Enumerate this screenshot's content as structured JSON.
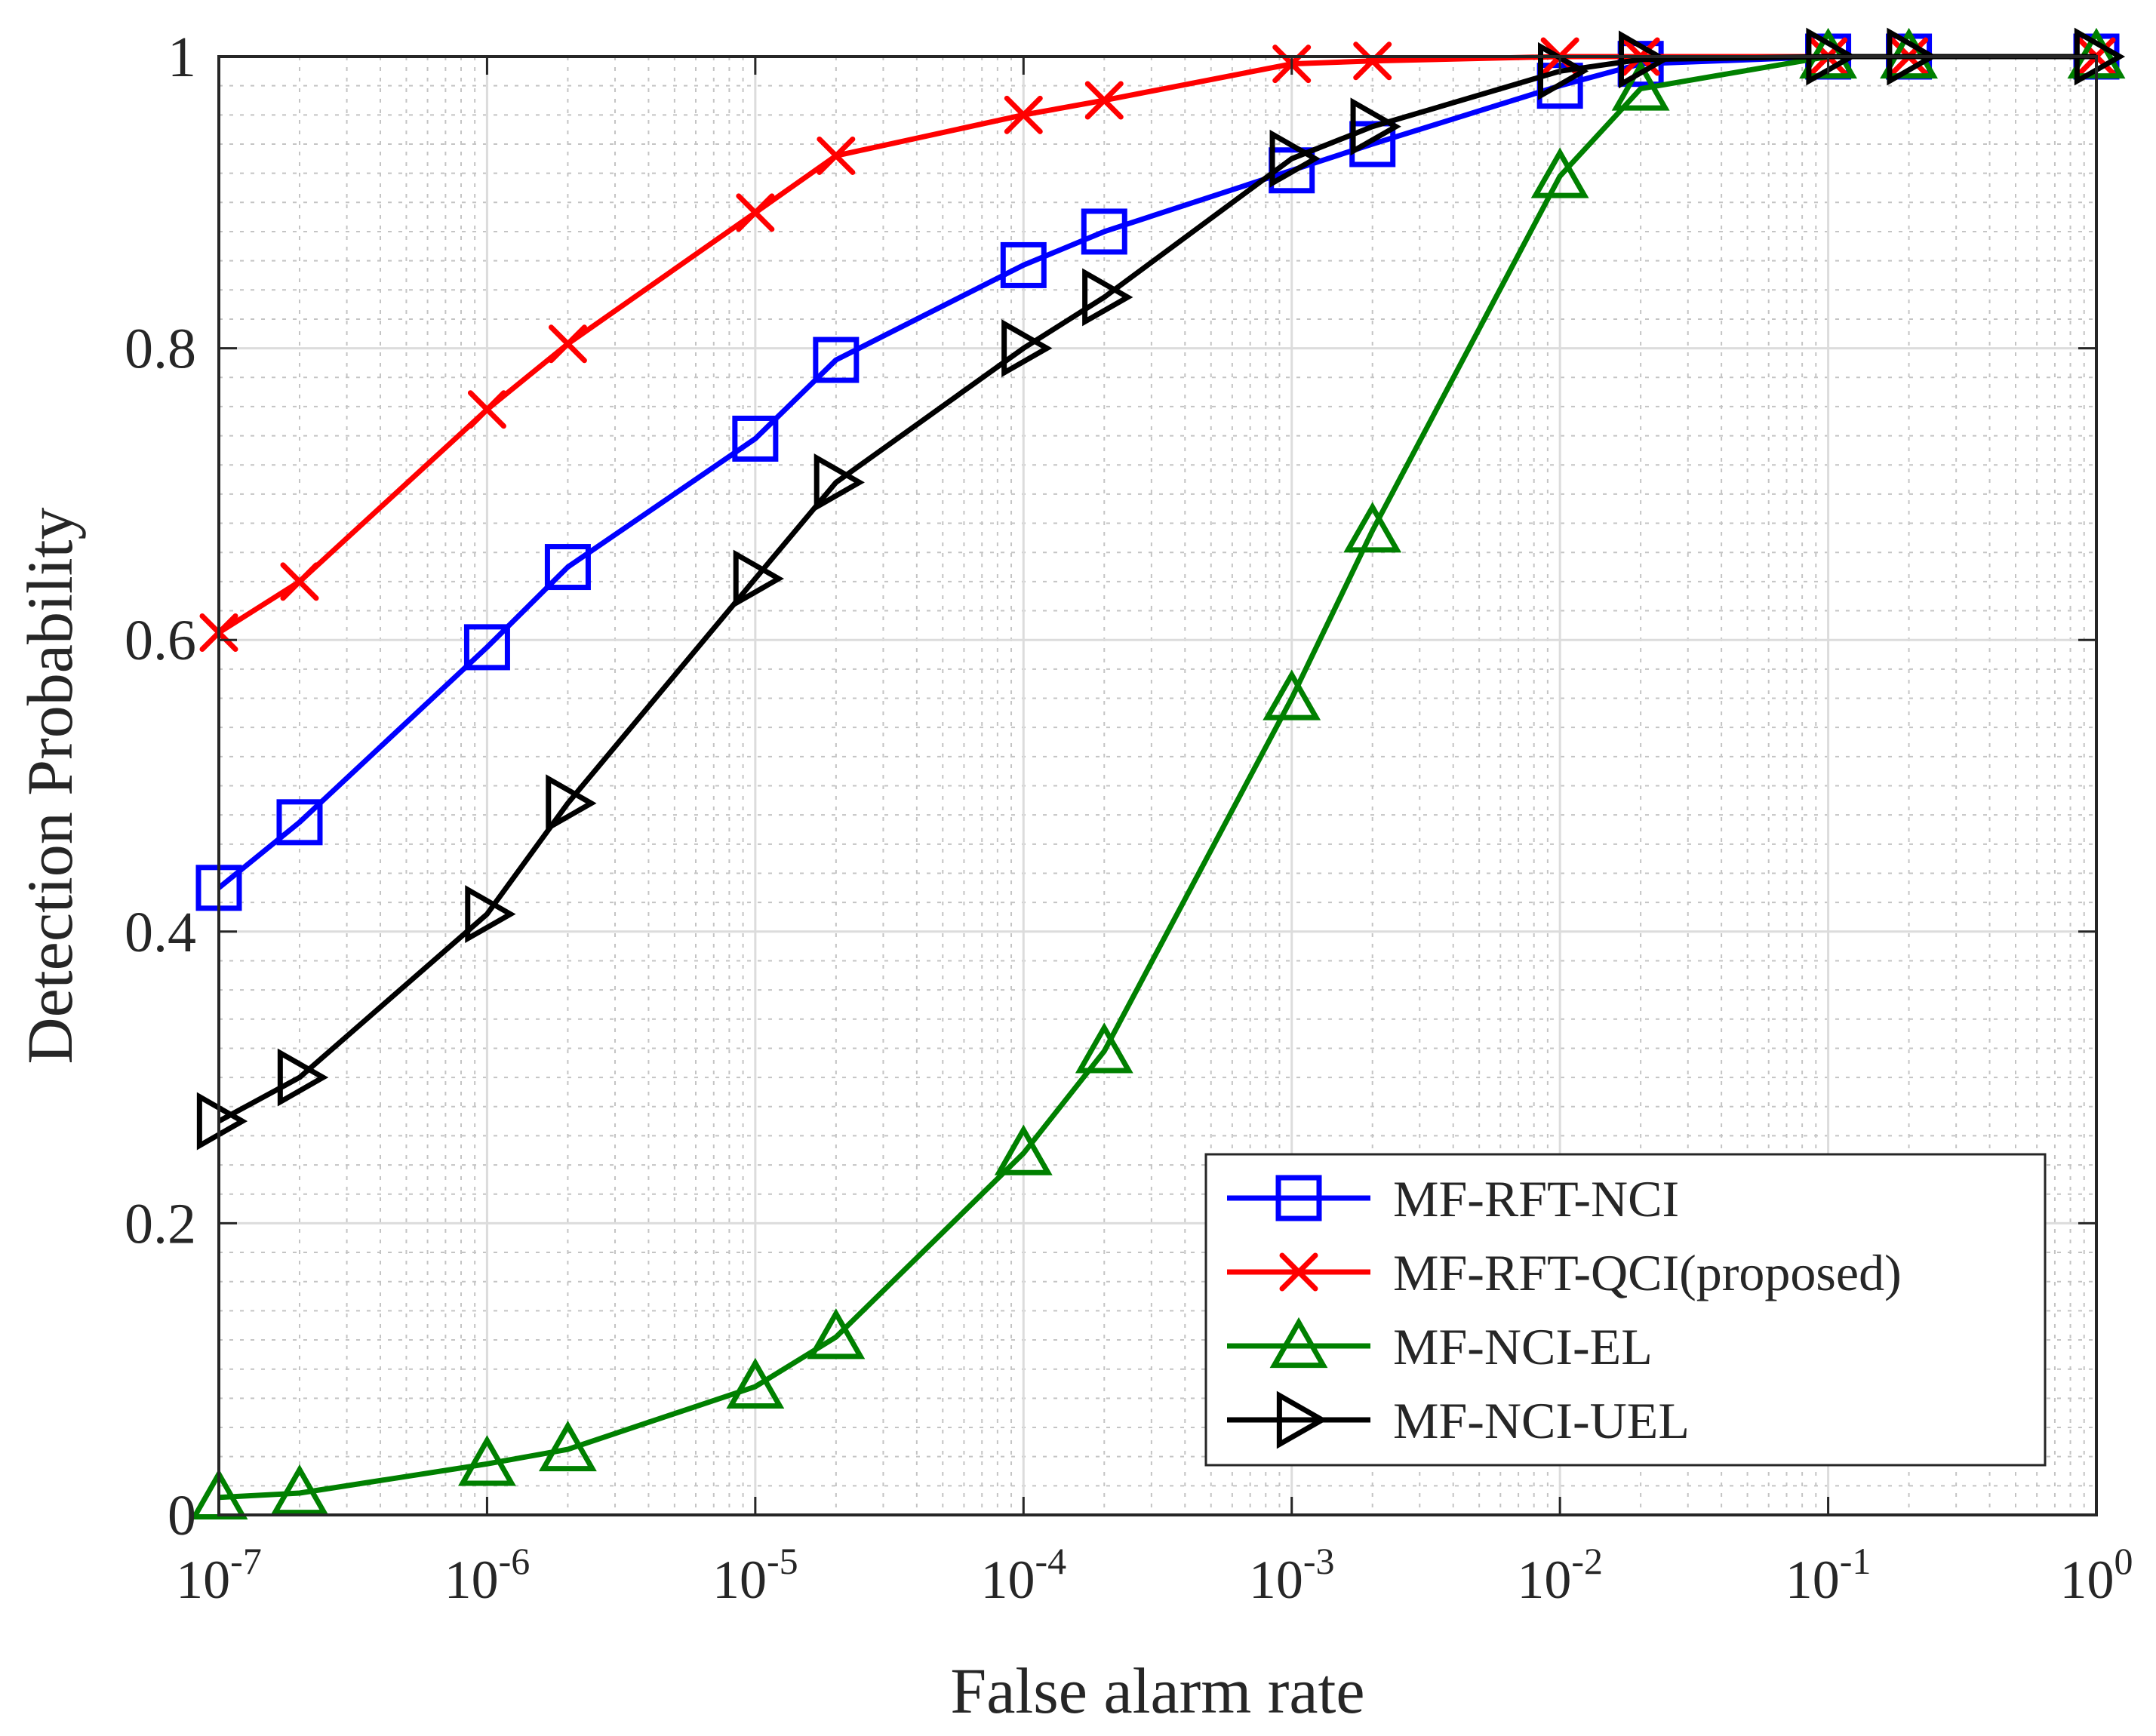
{
  "chart_data": {
    "type": "line",
    "title": "",
    "xlabel": "False alarm rate",
    "ylabel": "Detection Probability",
    "xscale": "log",
    "xlim_exp": [
      -7,
      0
    ],
    "ylim": [
      0,
      1
    ],
    "grid": true,
    "minor_grid": true,
    "legend_position": "bottom-right",
    "x_ticks": [
      {
        "base": "10",
        "exp": "-7"
      },
      {
        "base": "10",
        "exp": "-6"
      },
      {
        "base": "10",
        "exp": "-5"
      },
      {
        "base": "10",
        "exp": "-4"
      },
      {
        "base": "10",
        "exp": "-3"
      },
      {
        "base": "10",
        "exp": "-2"
      },
      {
        "base": "10",
        "exp": "-1"
      },
      {
        "base": "10",
        "exp": "0"
      }
    ],
    "y_ticks": [
      {
        "value": 0,
        "label": "0"
      },
      {
        "value": 0.2,
        "label": "0.2"
      },
      {
        "value": 0.4,
        "label": "0.4"
      },
      {
        "value": 0.6,
        "label": "0.6"
      },
      {
        "value": 0.8,
        "label": "0.8"
      },
      {
        "value": 1,
        "label": "1"
      }
    ],
    "x": [
      1e-07,
      2e-07,
      1e-06,
      2e-06,
      1e-05,
      2e-05,
      0.0001,
      0.0002,
      0.001,
      0.002,
      0.01,
      0.02,
      0.1,
      0.2,
      1
    ],
    "series": [
      {
        "name": "MF-RFT-NCI",
        "color": "#0000ff",
        "marker": "square",
        "values": [
          0.43,
          0.475,
          0.595,
          0.65,
          0.738,
          0.792,
          0.857,
          0.88,
          0.922,
          0.94,
          0.98,
          0.995,
          1.0,
          1.0,
          1.0
        ]
      },
      {
        "name": "MF-RFT-QCI(proposed)",
        "color": "#ff0000",
        "marker": "x",
        "values": [
          0.605,
          0.64,
          0.758,
          0.803,
          0.893,
          0.932,
          0.96,
          0.97,
          0.995,
          0.997,
          1.0,
          1.0,
          1.0,
          1.0,
          1.0
        ]
      },
      {
        "name": "MF-NCI-EL",
        "color": "#008000",
        "marker": "triangle-up",
        "values": [
          0.012,
          0.015,
          0.035,
          0.045,
          0.088,
          0.122,
          0.248,
          0.318,
          0.56,
          0.675,
          0.918,
          0.978,
          1.0,
          1.0,
          1.0
        ]
      },
      {
        "name": "MF-NCI-UEL",
        "color": "#000000",
        "marker": "triangle-right",
        "values": [
          0.27,
          0.3,
          0.412,
          0.488,
          0.642,
          0.708,
          0.8,
          0.835,
          0.93,
          0.952,
          0.99,
          0.998,
          1.0,
          1.0,
          1.0
        ]
      }
    ]
  }
}
